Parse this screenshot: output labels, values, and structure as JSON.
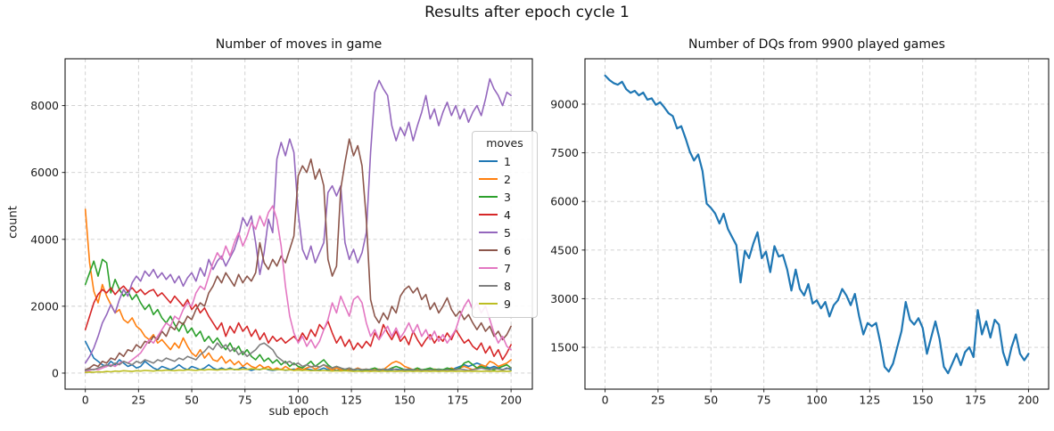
{
  "suptitle": "Results after epoch cycle 1",
  "chart_data": [
    {
      "type": "line",
      "title": "Number of moves in game",
      "xlabel": "sub epoch",
      "ylabel": "count",
      "xlim": [
        -9.5,
        210
      ],
      "ylim": [
        -480,
        9400
      ],
      "xticks": [
        0,
        25,
        50,
        75,
        100,
        125,
        150,
        175,
        200
      ],
      "yticks": [
        0,
        2000,
        4000,
        6000,
        8000
      ],
      "grid": true,
      "x_max": 200,
      "legend": {
        "title": "moves",
        "position": "center-right"
      },
      "series": [
        {
          "name": "1",
          "color": "#1f77b4",
          "values": [
            950,
            700,
            450,
            350,
            250,
            200,
            350,
            250,
            400,
            300,
            200,
            250,
            150,
            200,
            350,
            250,
            150,
            100,
            200,
            150,
            100,
            150,
            250,
            150,
            100,
            200,
            150,
            100,
            150,
            250,
            150,
            100,
            150,
            100,
            150,
            100,
            120,
            180,
            120,
            80,
            120,
            100,
            150,
            100,
            80,
            100,
            120,
            80,
            100,
            120,
            100,
            80,
            120,
            100,
            80,
            100,
            150,
            100,
            120,
            80,
            100,
            80,
            100,
            80,
            60,
            80,
            100,
            80,
            60,
            80,
            100,
            80,
            100,
            120,
            100,
            80,
            100,
            80,
            100,
            80,
            100,
            120,
            100,
            80,
            100,
            120,
            100,
            150,
            200,
            250,
            200,
            250,
            300,
            250,
            200,
            150,
            200,
            150,
            100,
            150,
            100
          ]
        },
        {
          "name": "2",
          "color": "#ff7f0e",
          "values": [
            4900,
            3300,
            2450,
            2100,
            2650,
            2300,
            2050,
            1800,
            1900,
            1600,
            1500,
            1650,
            1400,
            1300,
            1100,
            1000,
            1150,
            900,
            1000,
            850,
            700,
            900,
            750,
            1050,
            800,
            600,
            500,
            700,
            450,
            600,
            400,
            350,
            500,
            300,
            400,
            250,
            350,
            200,
            300,
            200,
            150,
            250,
            150,
            200,
            100,
            150,
            100,
            200,
            120,
            80,
            150,
            100,
            150,
            200,
            120,
            180,
            250,
            150,
            100,
            150,
            100,
            80,
            120,
            100,
            150,
            100,
            120,
            80,
            100,
            120,
            100,
            200,
            300,
            350,
            300,
            200,
            150,
            100,
            120,
            100,
            80,
            100,
            120,
            100,
            80,
            100,
            150,
            100,
            150,
            200,
            150,
            100,
            150,
            250,
            200,
            350,
            300,
            200,
            250,
            300,
            400
          ]
        },
        {
          "name": "3",
          "color": "#2ca02c",
          "values": [
            2650,
            3000,
            3350,
            2900,
            3400,
            3300,
            2400,
            2800,
            2500,
            2300,
            2450,
            2200,
            2350,
            2100,
            1900,
            2050,
            1750,
            1900,
            1650,
            1500,
            1700,
            1450,
            1250,
            1500,
            1200,
            1350,
            1100,
            1250,
            950,
            1100,
            900,
            1050,
            850,
            700,
            900,
            650,
            800,
            550,
            700,
            500,
            400,
            550,
            350,
            450,
            300,
            400,
            250,
            350,
            200,
            300,
            200,
            150,
            250,
            350,
            200,
            300,
            400,
            250,
            150,
            200,
            150,
            100,
            150,
            100,
            120,
            100,
            80,
            120,
            150,
            100,
            120,
            100,
            150,
            200,
            150,
            100,
            120,
            100,
            150,
            100,
            120,
            150,
            100,
            120,
            100,
            150,
            120,
            100,
            150,
            300,
            350,
            250,
            150,
            200,
            150,
            120,
            100,
            150,
            200,
            250,
            150
          ]
        },
        {
          "name": "4",
          "color": "#d62728",
          "values": [
            1300,
            1700,
            2100,
            2350,
            2500,
            2400,
            2550,
            2350,
            2500,
            2600,
            2450,
            2550,
            2400,
            2500,
            2350,
            2450,
            2500,
            2300,
            2400,
            2250,
            2100,
            2300,
            2150,
            2000,
            2200,
            1900,
            2050,
            1800,
            1950,
            1700,
            1500,
            1300,
            1500,
            1100,
            1400,
            1200,
            1500,
            1250,
            1400,
            1100,
            1300,
            1000,
            1200,
            900,
            1100,
            950,
            1050,
            900,
            1000,
            1100,
            950,
            1200,
            1000,
            1300,
            1100,
            1450,
            1300,
            1550,
            1200,
            900,
            1100,
            800,
            1000,
            700,
            900,
            750,
            950,
            800,
            1200,
            1000,
            1450,
            1200,
            1000,
            1250,
            950,
            1100,
            850,
            1250,
            1000,
            800,
            1000,
            1150,
            900,
            1100,
            950,
            1200,
            1000,
            1300,
            1100,
            900,
            1000,
            800,
            700,
            900,
            600,
            800,
            500,
            700,
            400,
            600,
            850
          ]
        },
        {
          "name": "5",
          "color": "#9467bd",
          "values": [
            300,
            500,
            750,
            1100,
            1500,
            1750,
            2050,
            1800,
            2200,
            2500,
            2300,
            2700,
            2900,
            2750,
            3050,
            2900,
            3100,
            2850,
            3000,
            2800,
            2950,
            2700,
            2900,
            2600,
            2850,
            3000,
            2750,
            3150,
            2900,
            3400,
            3100,
            3350,
            3500,
            3200,
            3450,
            3700,
            4100,
            4650,
            4400,
            4700,
            3900,
            2950,
            3600,
            4600,
            4200,
            6400,
            6900,
            6500,
            7000,
            6600,
            4800,
            3700,
            3400,
            3800,
            3300,
            3600,
            3900,
            5400,
            5600,
            5300,
            5600,
            3900,
            3400,
            3700,
            3300,
            3600,
            4200,
            6600,
            8400,
            8750,
            8500,
            8300,
            7400,
            6950,
            7350,
            7100,
            7500,
            6950,
            7400,
            7800,
            8300,
            7600,
            7900,
            7400,
            7800,
            8100,
            7700,
            8000,
            7600,
            7900,
            7500,
            7800,
            8000,
            7700,
            8200,
            8800,
            8500,
            8300,
            8000,
            8400,
            8300
          ]
        },
        {
          "name": "6",
          "color": "#8c564b",
          "values": [
            100,
            150,
            250,
            200,
            350,
            300,
            450,
            400,
            600,
            500,
            700,
            650,
            850,
            750,
            950,
            900,
            1100,
            1000,
            1250,
            1100,
            1400,
            1300,
            1550,
            1450,
            1700,
            1600,
            1900,
            2100,
            2000,
            2400,
            2600,
            2900,
            2700,
            3000,
            2800,
            2600,
            2950,
            2700,
            2900,
            2750,
            3000,
            3900,
            3300,
            3100,
            3400,
            3200,
            3500,
            3300,
            3700,
            4100,
            5900,
            6200,
            6000,
            6400,
            5800,
            6100,
            5600,
            3400,
            2900,
            3200,
            5500,
            6300,
            7000,
            6500,
            6800,
            6200,
            4600,
            2200,
            1700,
            1500,
            1800,
            1600,
            2000,
            1800,
            2300,
            2500,
            2600,
            2400,
            2550,
            2200,
            2350,
            1900,
            2100,
            1800,
            2000,
            2250,
            1900,
            1700,
            1850,
            1600,
            1750,
            1500,
            1300,
            1500,
            1250,
            1400,
            1100,
            1250,
            1000,
            1150,
            1400
          ]
        },
        {
          "name": "7",
          "color": "#e377c2",
          "values": [
            60,
            80,
            120,
            100,
            150,
            200,
            250,
            200,
            300,
            350,
            300,
            400,
            500,
            600,
            800,
            1000,
            900,
            1100,
            1300,
            1500,
            1400,
            1700,
            1600,
            1900,
            2100,
            2000,
            2400,
            2600,
            2500,
            2900,
            3300,
            3600,
            3400,
            3800,
            3500,
            3900,
            4200,
            3800,
            4100,
            4500,
            4300,
            4700,
            4400,
            4800,
            5000,
            4600,
            3800,
            2600,
            1700,
            1200,
            900,
            1100,
            800,
            1000,
            750,
            950,
            1300,
            1600,
            2100,
            1800,
            2300,
            2000,
            1700,
            2200,
            2300,
            2100,
            1500,
            1100,
            1300,
            1000,
            1200,
            1400,
            1100,
            1350,
            1050,
            1250,
            1500,
            1200,
            1450,
            1100,
            1300,
            1000,
            1250,
            950,
            1150,
            900,
            1100,
            1300,
            1700,
            2000,
            2200,
            1900,
            2100,
            1800,
            2000,
            1600,
            1200,
            900,
            1100,
            800,
            700
          ]
        },
        {
          "name": "8",
          "color": "#7f7f7f",
          "values": [
            80,
            120,
            100,
            150,
            200,
            250,
            200,
            300,
            250,
            350,
            300,
            250,
            350,
            300,
            400,
            350,
            300,
            400,
            350,
            450,
            400,
            350,
            450,
            400,
            500,
            450,
            400,
            550,
            650,
            800,
            700,
            900,
            750,
            850,
            650,
            750,
            550,
            650,
            500,
            600,
            700,
            850,
            900,
            800,
            700,
            500,
            400,
            300,
            350,
            250,
            300,
            200,
            250,
            180,
            220,
            180,
            250,
            200,
            150,
            200,
            150,
            120,
            150,
            100,
            130,
            100,
            120,
            100,
            80,
            100,
            120,
            100,
            130,
            100,
            80,
            100,
            120,
            100,
            80,
            100,
            80,
            100,
            80,
            100,
            80,
            100,
            80,
            100,
            120,
            100,
            80,
            100,
            120,
            150,
            120,
            100,
            150,
            120,
            100,
            130,
            160
          ]
        },
        {
          "name": "9",
          "color": "#bcbd22",
          "values": [
            20,
            30,
            25,
            40,
            30,
            50,
            40,
            60,
            50,
            70,
            60,
            50,
            70,
            60,
            80,
            70,
            60,
            80,
            70,
            90,
            80,
            70,
            90,
            80,
            100,
            90,
            80,
            100,
            90,
            110,
            100,
            90,
            110,
            100,
            120,
            110,
            100,
            120,
            110,
            130,
            120,
            110,
            130,
            120,
            100,
            110,
            100,
            90,
            100,
            80,
            90,
            80,
            90,
            70,
            80,
            70,
            80,
            70,
            60,
            70,
            60,
            70,
            60,
            50,
            60,
            50,
            60,
            50,
            60,
            50,
            60,
            50,
            60,
            50,
            60,
            50,
            60,
            50,
            60,
            50,
            60,
            50,
            60,
            50,
            60,
            50,
            60,
            50,
            60,
            50,
            60,
            50,
            60,
            50,
            60,
            50,
            60,
            50,
            60,
            50,
            60
          ]
        }
      ]
    },
    {
      "type": "line",
      "title": "Number of DQs from 9900 played games",
      "xlabel": "",
      "ylabel": "",
      "xlim": [
        -9.5,
        209.5
      ],
      "ylim": [
        210,
        10400
      ],
      "xticks": [
        0,
        25,
        50,
        75,
        100,
        125,
        150,
        175,
        200
      ],
      "yticks": [
        1500,
        3000,
        4500,
        6000,
        7500,
        9000
      ],
      "grid": true,
      "x_max": 200,
      "series": [
        {
          "name": "DQs",
          "color": "#1f77b4",
          "values": [
            9880,
            9750,
            9650,
            9600,
            9690,
            9460,
            9350,
            9410,
            9270,
            9360,
            9140,
            9180,
            8980,
            9060,
            8900,
            8720,
            8630,
            8250,
            8320,
            7950,
            7540,
            7260,
            7450,
            6940,
            5930,
            5800,
            5630,
            5320,
            5620,
            5150,
            4900,
            4650,
            3500,
            4480,
            4250,
            4700,
            5050,
            4250,
            4450,
            3820,
            4620,
            4300,
            4350,
            3900,
            3250,
            3900,
            3300,
            3100,
            3450,
            2850,
            2950,
            2700,
            2900,
            2450,
            2800,
            2950,
            3300,
            3100,
            2800,
            3150,
            2450,
            1900,
            2250,
            2150,
            2250,
            1650,
            900,
            750,
            1000,
            1500,
            2000,
            2900,
            2350,
            2200,
            2400,
            2100,
            1300,
            1800,
            2300,
            1750,
            900,
            700,
            1000,
            1300,
            950,
            1350,
            1500,
            1200,
            2650,
            1900,
            2300,
            1800,
            2350,
            2200,
            1350,
            950,
            1500,
            1900,
            1300,
            1100,
            1300
          ]
        }
      ]
    }
  ]
}
